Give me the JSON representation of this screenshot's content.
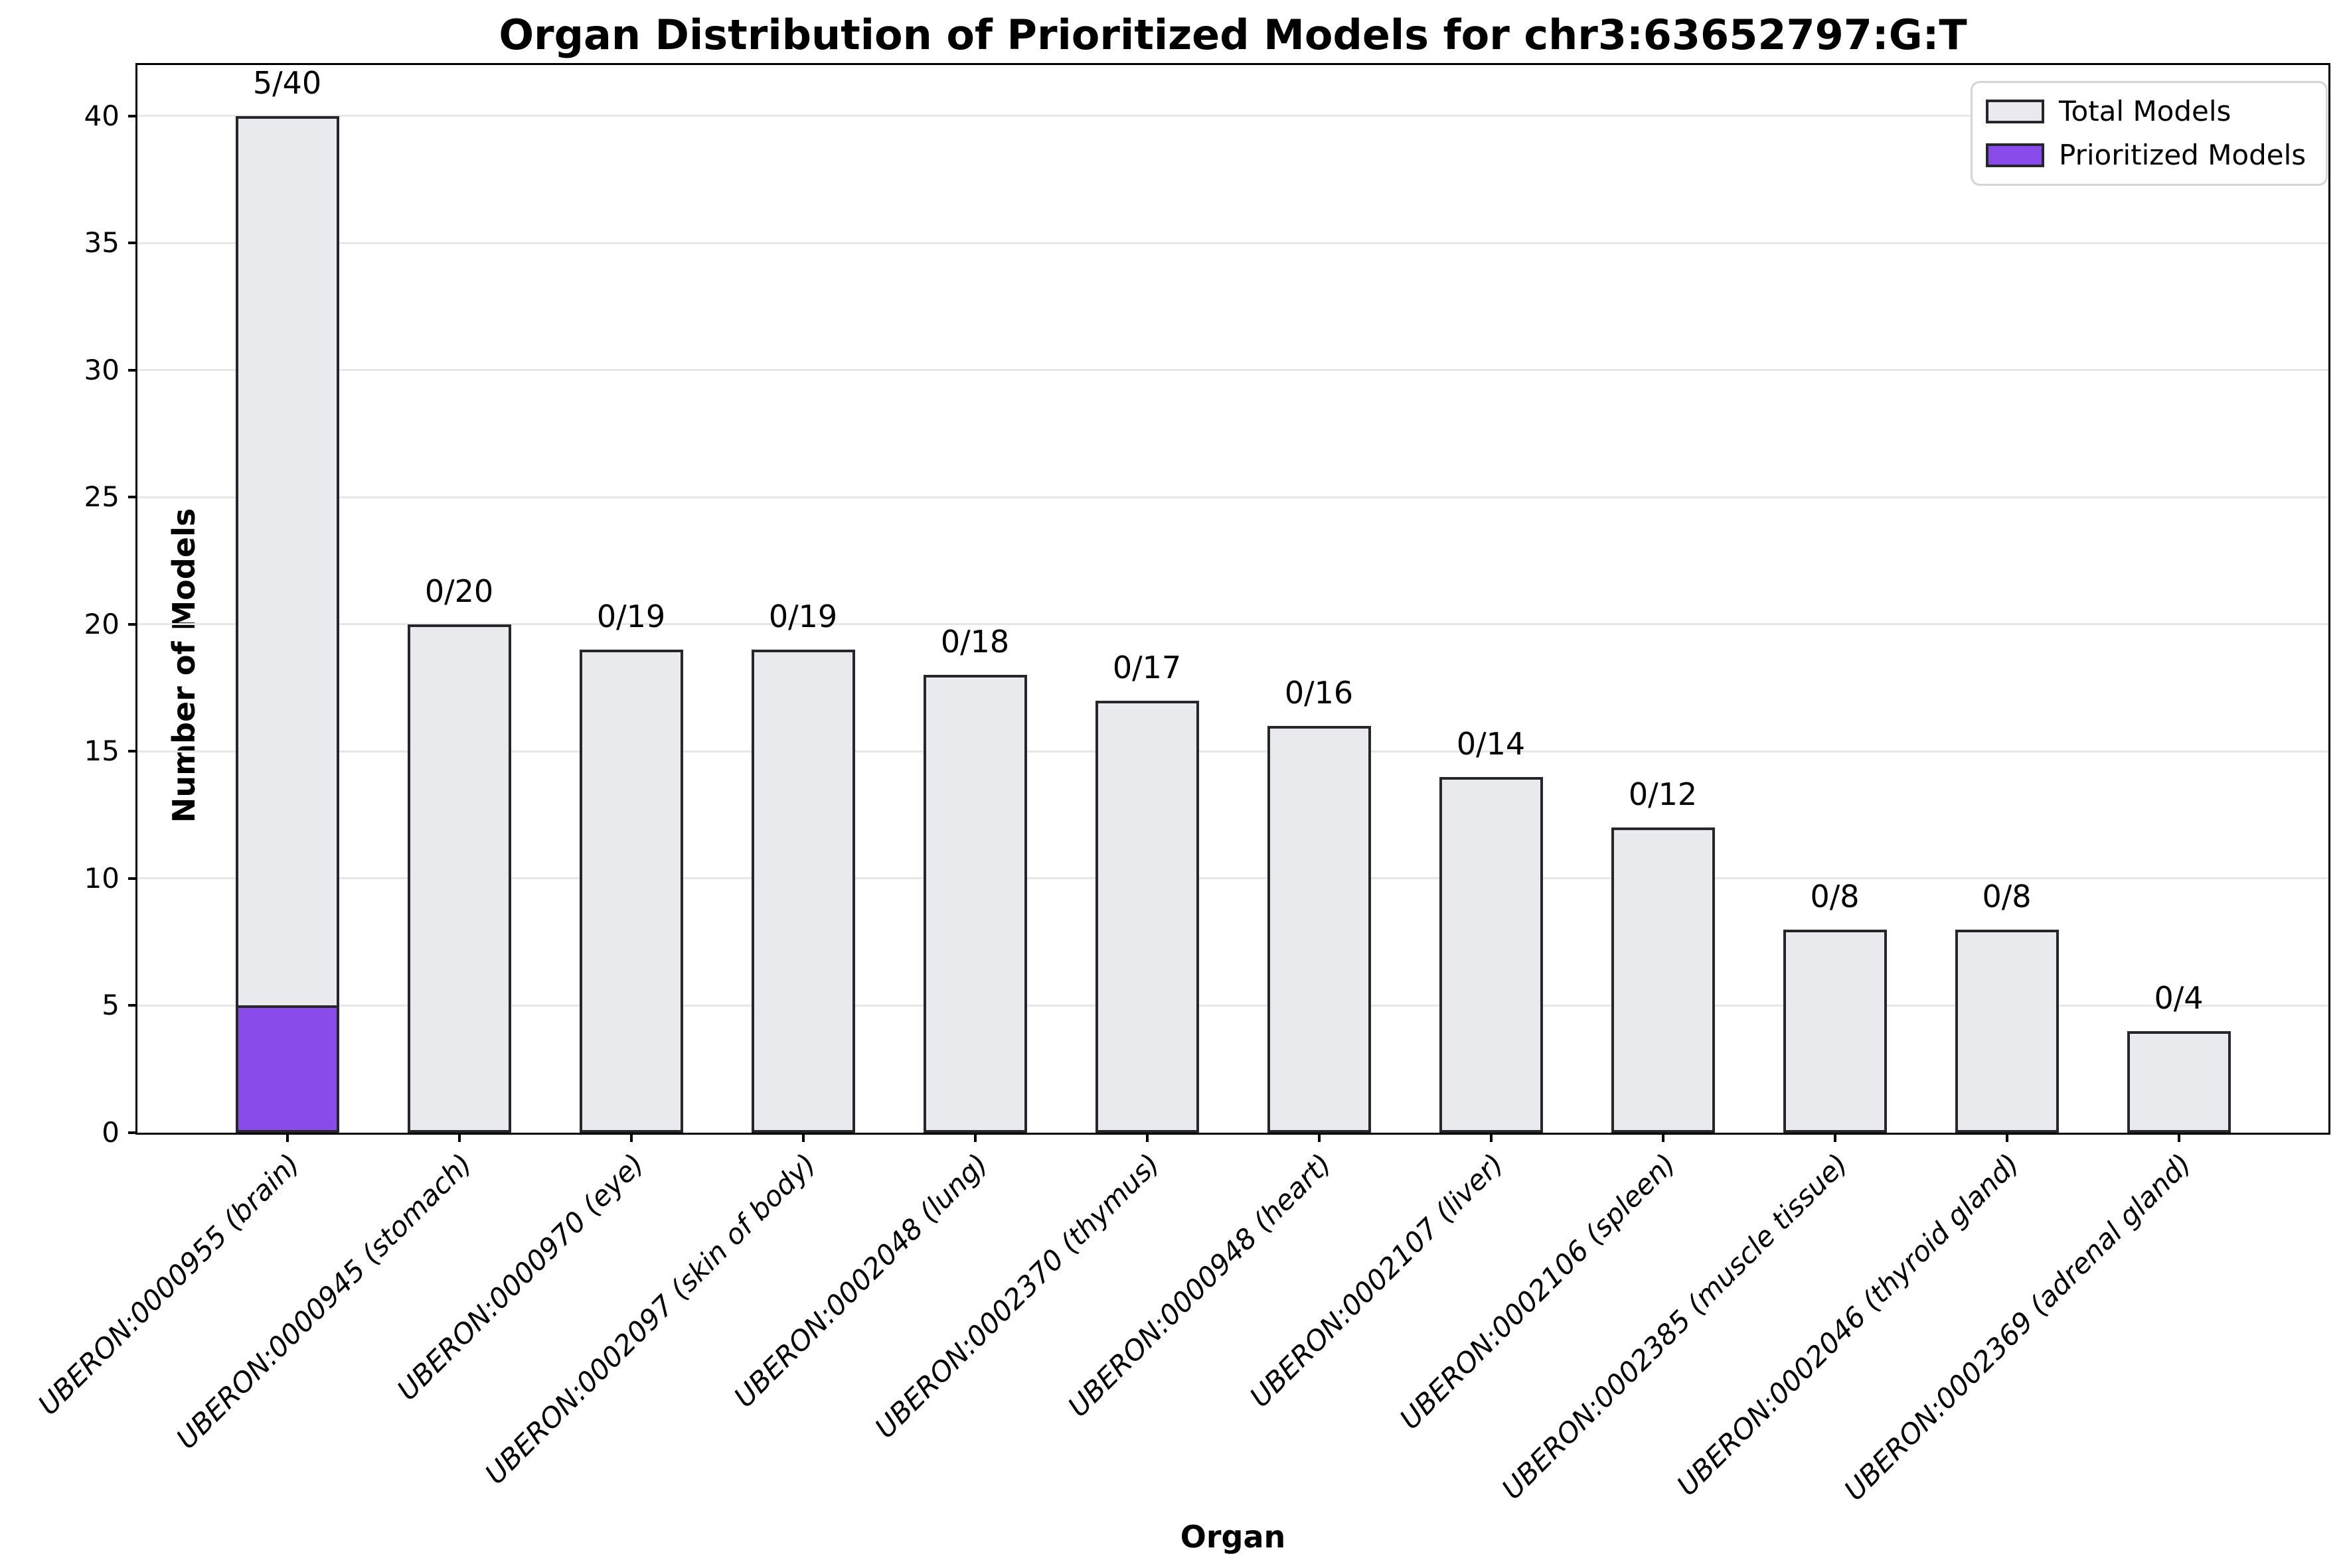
{
  "chart_data": {
    "type": "bar",
    "stacked": true,
    "title": "Organ Distribution of Prioritized Models for chr3:63652797:G:T",
    "xlabel": "Organ",
    "ylabel": "Number of Models",
    "categories": [
      "UBERON:0000955 (brain)",
      "UBERON:0000945 (stomach)",
      "UBERON:0000970 (eye)",
      "UBERON:0002097 (skin of body)",
      "UBERON:0002048 (lung)",
      "UBERON:0002370 (thymus)",
      "UBERON:0000948 (heart)",
      "UBERON:0002107 (liver)",
      "UBERON:0002106 (spleen)",
      "UBERON:0002385 (muscle tissue)",
      "UBERON:0002046 (thyroid gland)",
      "UBERON:0002369 (adrenal gland)"
    ],
    "series": [
      {
        "name": "Total Models",
        "values": [
          40,
          20,
          19,
          19,
          18,
          17,
          16,
          14,
          12,
          8,
          8,
          4
        ],
        "color": "#E9EAEE"
      },
      {
        "name": "Prioritized Models",
        "values": [
          5,
          0,
          0,
          0,
          0,
          0,
          0,
          0,
          0,
          0,
          0,
          0
        ],
        "color": "#8A4BEB"
      }
    ],
    "bar_labels": [
      "5/40",
      "0/20",
      "0/19",
      "0/19",
      "0/18",
      "0/17",
      "0/16",
      "0/14",
      "0/12",
      "0/8",
      "0/8",
      "0/4"
    ],
    "yticks": [
      0,
      5,
      10,
      15,
      20,
      25,
      30,
      35,
      40
    ],
    "ylim": [
      0,
      42
    ],
    "grid": "horizontal",
    "legend_position": "upper right",
    "bar_edge_color": "#26262C",
    "gridline_color": "#E7E7E7"
  }
}
